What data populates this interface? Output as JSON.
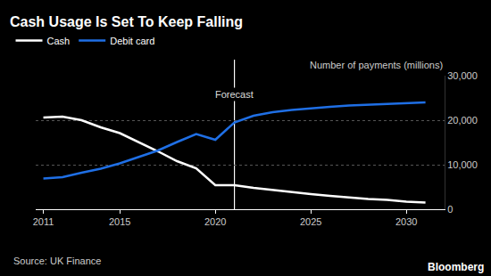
{
  "chart_data": {
    "type": "line",
    "title": "Cash Usage Is Set To Keep Falling",
    "ylabel": "Number of payments (millions)",
    "source": "Source: UK Finance",
    "logo": "Bloomberg",
    "annotations": [
      {
        "text": "Forecast",
        "x": 2021
      }
    ],
    "x": [
      2011,
      2012,
      2013,
      2014,
      2015,
      2016,
      2017,
      2018,
      2019,
      2020,
      2021,
      2022,
      2023,
      2024,
      2025,
      2026,
      2027,
      2028,
      2029,
      2030,
      2031
    ],
    "series": [
      {
        "name": "Cash",
        "color": "#ffffff",
        "values": [
          20600,
          20800,
          20000,
          18400,
          17100,
          15100,
          13000,
          10800,
          9200,
          5400,
          5400,
          4800,
          4300,
          3800,
          3400,
          3000,
          2600,
          2300,
          2100,
          1700,
          1500
        ]
      },
      {
        "name": "Debit card",
        "color": "#1f6fe5",
        "values": [
          6900,
          7200,
          8200,
          9100,
          10300,
          11700,
          13200,
          15100,
          16900,
          15600,
          19500,
          21000,
          21800,
          22300,
          22700,
          23000,
          23300,
          23500,
          23700,
          23900,
          24000
        ]
      }
    ],
    "xlim": [
      2010.6,
      2032
    ],
    "xticks": [
      2011,
      2015,
      2020,
      2025,
      2030
    ],
    "ylim": [
      0,
      30000
    ],
    "yticks": [
      0,
      {
        "value": 10000,
        "label": "10,000"
      },
      {
        "value": 20000,
        "label": "20,000"
      },
      {
        "value": 30000,
        "label": "30,000"
      }
    ],
    "grid": true,
    "legend": "top left"
  }
}
